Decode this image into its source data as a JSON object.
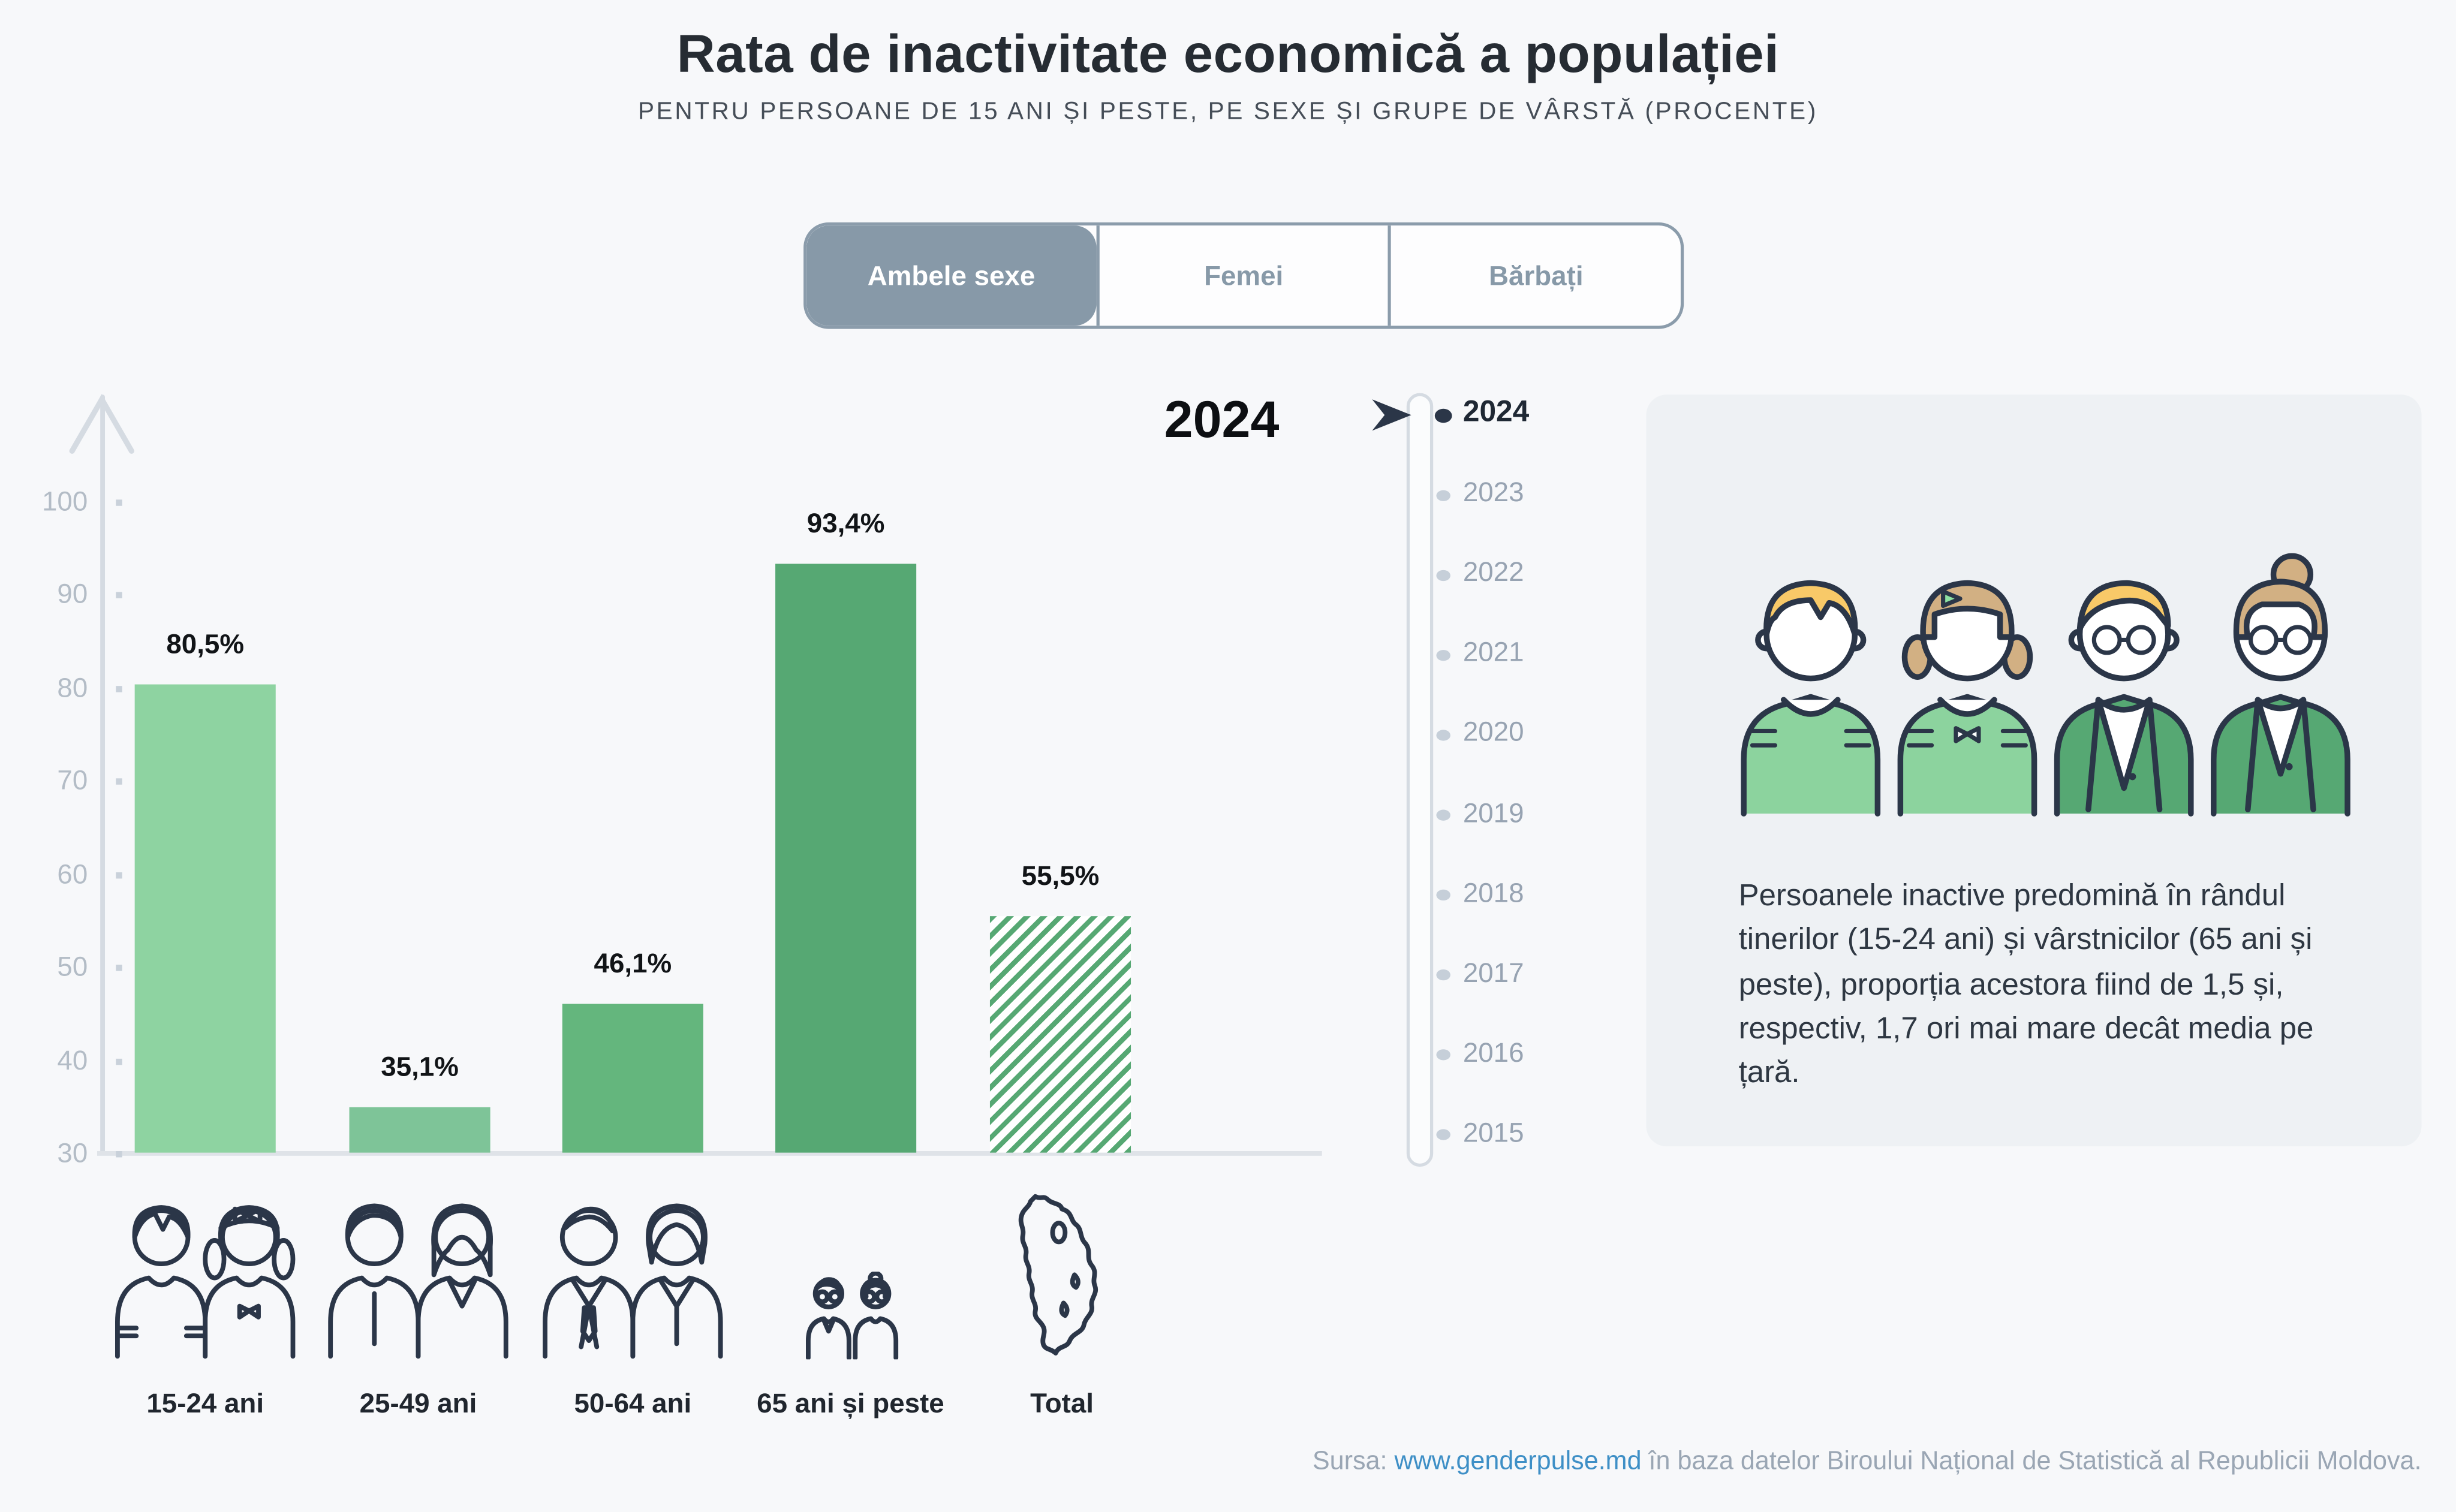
{
  "header": {
    "title": "Rata de inactivitate economică a populației",
    "subtitle": "PENTRU PERSOANE DE 15 ANI ȘI PESTE, PE SEXE ȘI GRUPE DE VÂRSTĂ (PROCENTE)"
  },
  "tabs": {
    "items": [
      {
        "label": "Ambele sexe",
        "active": true
      },
      {
        "label": "Femei",
        "active": false
      },
      {
        "label": "Bărbați",
        "active": false
      }
    ]
  },
  "selected_year_label": "2024",
  "chart_data": {
    "type": "bar",
    "title": "Rata de inactivitate economică a populației",
    "subtitle": "Pentru persoane de 15 ani și peste, pe sexe și grupe de vârstă (procente)",
    "sex_filter": "Ambele sexe",
    "year": "2024",
    "categories": [
      "15-24 ani",
      "25-49 ani",
      "50-64 ani",
      "65 ani și peste",
      "Total"
    ],
    "values": [
      80.5,
      35.1,
      46.1,
      93.4,
      55.5
    ],
    "values_display": [
      "80,5%",
      "35,1%",
      "46,1%",
      "93,4%",
      "55,5%"
    ],
    "ylim": [
      30,
      100
    ],
    "yticks": [
      100,
      90,
      80,
      70,
      60,
      50,
      40,
      30
    ],
    "bar_colors": [
      "#8ed3a1",
      "#7ec498",
      "#64b67d",
      "#56a873",
      "#56a873"
    ],
    "hatched": [
      false,
      false,
      false,
      false,
      true
    ],
    "grid": false,
    "legend_position": "none"
  },
  "timeline": {
    "years": [
      "2024",
      "2023",
      "2022",
      "2021",
      "2020",
      "2019",
      "2018",
      "2017",
      "2016",
      "2015"
    ],
    "active_year": "2024"
  },
  "info_card": {
    "text": "Persoanele inactive predomină în rândul tinerilor (15-24 ani) și vârstnicilor (65 ani și peste), proporția acestora fiind de 1,5 și, respectiv, 1,7 ori mai mare decât media pe țară."
  },
  "source": {
    "prefix": "Sursa: ",
    "link_text": "www.genderpulse.md",
    "suffix": " în baza datelor Biroului Național de Statistică al Republicii Moldova."
  },
  "colors": {
    "background": "#f7f8fa",
    "card": "#eef1f4",
    "tab_active": "#8799a8",
    "link": "#3e8fc6",
    "outline": "#2b3648",
    "axis": "#d5dbe2",
    "muted": "#9aa6b4",
    "shirt_light_green": "#8cd39e",
    "cardigan_dark_green": "#56a873",
    "hair_yellow": "#f8c968",
    "hair_tan": "#d2b083"
  }
}
